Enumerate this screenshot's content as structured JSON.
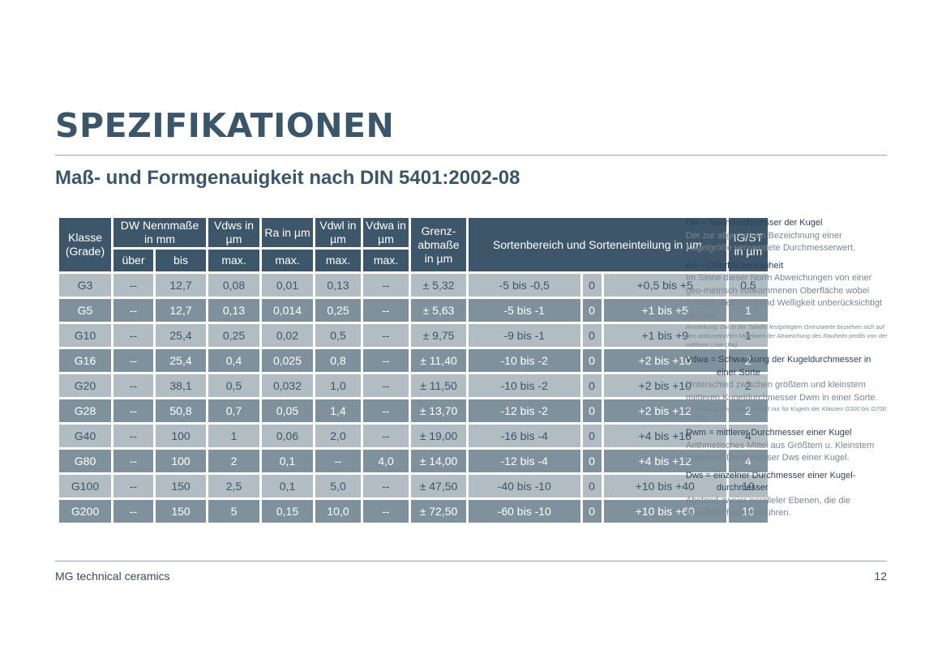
{
  "title": "SPEZIFIKATIONEN",
  "subtitle": "Maß- und Formgenauigkeit nach DIN 5401:2002-08",
  "table": {
    "headers": {
      "klasse": "Klasse (Grade)",
      "dw": "DW Nennmaße in mm",
      "dw_ueber": "über",
      "dw_bis": "bis",
      "vdws": "Vdws in µm",
      "ra": "Ra in µm",
      "vdwl": "Vdwl in µm",
      "vdwa": "Vdwa in µm",
      "max": "max.",
      "grenz": "Grenz- abmaße in µm",
      "sorten": "Sortenbereich und Sorteneinteilung in µm",
      "igst": "IG/ST in µm"
    },
    "rows": [
      [
        "G3",
        "--",
        "12,7",
        "0,08",
        "0,01",
        "0,13",
        "--",
        "± 5,32",
        "-5 bis -0,5",
        "0",
        "+0,5 bis +5",
        "0,5"
      ],
      [
        "G5",
        "--",
        "12,7",
        "0,13",
        "0,014",
        "0,25",
        "--",
        "± 5,63",
        "-5 bis -1",
        "0",
        "+1 bis +5",
        "1"
      ],
      [
        "G10",
        "--",
        "25,4",
        "0,25",
        "0,02",
        "0,5",
        "--",
        "± 9,75",
        "-9 bis -1",
        "0",
        "+1 bis +9",
        "1"
      ],
      [
        "G16",
        "--",
        "25,4",
        "0,4",
        "0,025",
        "0,8",
        "--",
        "± 11,40",
        "-10 bis -2",
        "0",
        "+2 bis +10",
        "2"
      ],
      [
        "G20",
        "--",
        "38,1",
        "0,5",
        "0,032",
        "1,0",
        "--",
        "± 11,50",
        "-10 bis -2",
        "0",
        "+2 bis +10",
        "2"
      ],
      [
        "G28",
        "--",
        "50,8",
        "0,7",
        "0,05",
        "1,4",
        "--",
        "± 13,70",
        "-12 bis -2",
        "0",
        "+2 bis +12",
        "2"
      ],
      [
        "G40",
        "--",
        "100",
        "1",
        "0,06",
        "2,0",
        "--",
        "± 19,00",
        "-16 bis -4",
        "0",
        "+4 bis +16",
        "4"
      ],
      [
        "G80",
        "--",
        "100",
        "2",
        "0,1",
        "--",
        "4,0",
        "± 14,00",
        "-12 bis -4",
        "0",
        "+4 bis +12",
        "4"
      ],
      [
        "G100",
        "--",
        "150",
        "2,5",
        "0,1",
        "5,0",
        "--",
        "± 47,50",
        "-40 bis -10",
        "0",
        "+10 bis +40",
        "10"
      ],
      [
        "G200",
        "--",
        "150",
        "5",
        "0,15",
        "10,0",
        "--",
        "± 72,50",
        "-60 bis -10",
        "0",
        "+10 bis +60",
        "10"
      ]
    ]
  },
  "legend": {
    "dw_term": "Dw = Nenndurchmesser der Kugel",
    "dw_desc": "Der zur allgemeinen Bezeichnung einer Kugelgröße verwendete Durchmesserwert.",
    "ra_term": "Ra = Oberflächenrauheit",
    "ra_desc": "Im Sinne dieser Norm Abweichungen von einer geo-metrisch vollkommenen Oberfläche wobei Formab-weichung und Welligkeit unberücksichtigt bleiben.",
    "ra_note": "Anmerkung: Die in der Tabelle festgelegten Grenzwerte beziehen sich auf den arithmetischen Mittelwert der Abweichung des Rauheits-profils von der mittleren Linie (Ra).",
    "vdwa_term_1": "Vdwa = Schwankung der Kugeldurchmesser in",
    "vdwa_term_2": "einer Sorte",
    "vdwa_desc": "Unterschied zwischen größtem und kleinstem mittleren Kugeldurchmesser Dwm in einer Sorte.",
    "vdwa_note": "Anmerkung: Der Parameter gilt nur für Kugeln der Klassen G300 bis G700 u. G 80",
    "dwm_term": "Dwm = mittlerer Durchmesser einer Kugel",
    "dwm_desc": "Arithmetisches Mittel aus Größtem u. Kleinstem einzelnen Durchmesser Dws einer Kugel.",
    "dws_term_1": "Dws = einzelner Durchmesser einer Kugel-",
    "dws_term_2": "durchmesser",
    "dws_desc": "Abstand zweier paralleler Ebenen, die die Kugeloberfläche berühren."
  },
  "footer": {
    "company": "MG technical ceramics",
    "page_number": "12"
  }
}
